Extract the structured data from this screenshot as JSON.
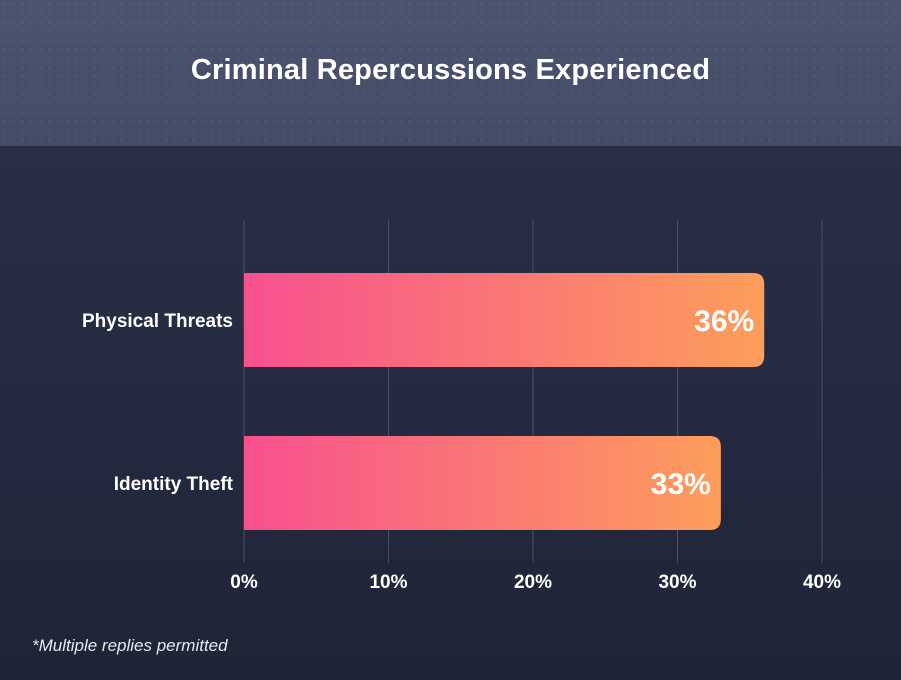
{
  "title": "Criminal Repercussions Experienced",
  "footnote": "*Multiple replies permitted",
  "colors": {
    "bar_gradient_start": "#f7508f",
    "bar_gradient_end": "#fd9e5b",
    "grid": "#4a5068",
    "text": "#ffffff"
  },
  "chart_data": {
    "type": "bar",
    "orientation": "horizontal",
    "categories": [
      "Physical Threats",
      "Identity Theft"
    ],
    "values": [
      36,
      33
    ],
    "value_labels": [
      "36%",
      "33%"
    ],
    "xlim": [
      0,
      40
    ],
    "ticks": [
      0,
      10,
      20,
      30,
      40
    ],
    "tick_labels": [
      "0%",
      "10%",
      "20%",
      "30%",
      "40%"
    ],
    "grid": true
  }
}
